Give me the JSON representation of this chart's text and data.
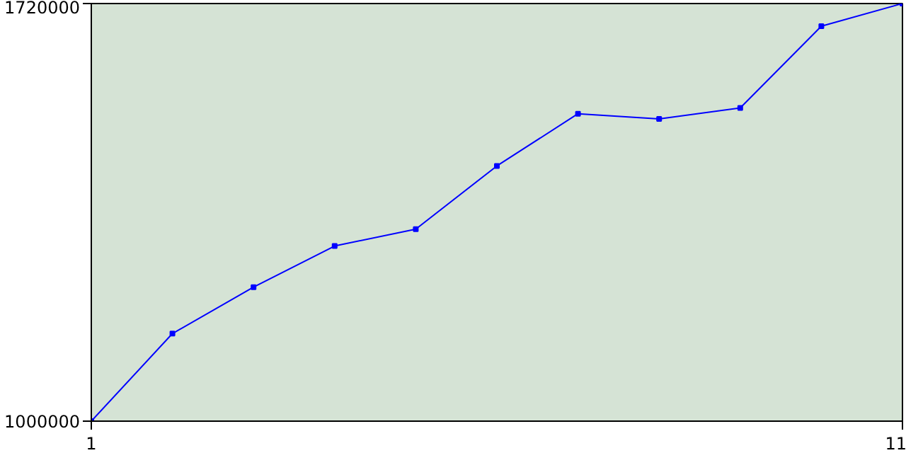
{
  "chart_data": {
    "type": "line",
    "x": [
      1,
      2,
      3,
      4,
      5,
      6,
      7,
      8,
      9,
      10,
      11
    ],
    "series": [
      {
        "color": "#0000ff",
        "values": [
          1000000,
          1151000,
          1231000,
          1302000,
          1331000,
          1440000,
          1530000,
          1521000,
          1540000,
          1681000,
          1720000
        ]
      }
    ],
    "xlim": [
      1,
      11
    ],
    "xticks": [
      1,
      11
    ],
    "ylim": [
      1000000,
      1720000
    ],
    "yticks": [
      1000000,
      1720000
    ],
    "marker": "square",
    "line_style": "solid"
  }
}
